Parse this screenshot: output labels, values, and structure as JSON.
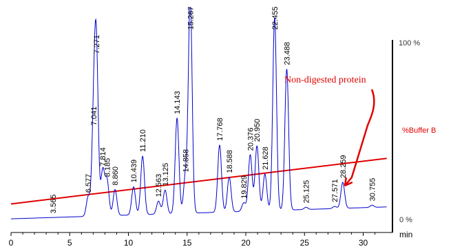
{
  "chart_data": {
    "type": "line",
    "xlabel": "min",
    "xlim": [
      0,
      32
    ],
    "ylim": [
      0,
      100
    ],
    "x_ticks": [
      0,
      5,
      10,
      15,
      20,
      25,
      30
    ],
    "y_axis_labels": {
      "top": "100 %",
      "bottom": "0 %"
    },
    "series": [
      {
        "kind": "chromatogram",
        "color": "#0000cc",
        "peaks": [
          {
            "rt": "3.565",
            "x": 3.565,
            "height": 0
          },
          {
            "rt": "6.577",
            "x": 6.577,
            "height": 9
          },
          {
            "rt": "7.041",
            "x": 7.041,
            "height": 40
          },
          {
            "rt": "7.271",
            "x": 7.271,
            "height": 73
          },
          {
            "rt": "7.814",
            "x": 7.814,
            "height": 21
          },
          {
            "rt": "8.185",
            "x": 8.185,
            "height": 16
          },
          {
            "rt": "8.860",
            "x": 8.86,
            "height": 12
          },
          {
            "rt": "10.439",
            "x": 10.439,
            "height": 13
          },
          {
            "rt": "11.210",
            "x": 11.21,
            "height": 27
          },
          {
            "rt": "12.563",
            "x": 12.563,
            "height": 6
          },
          {
            "rt": "13.125",
            "x": 13.125,
            "height": 11
          },
          {
            "rt": "14.143",
            "x": 14.143,
            "height": 44
          },
          {
            "rt": "14.858",
            "x": 14.858,
            "height": 17
          },
          {
            "rt": "15.267",
            "x": 15.267,
            "height": 100
          },
          {
            "rt": "17.768",
            "x": 17.768,
            "height": 31
          },
          {
            "rt": "18.588",
            "x": 18.588,
            "height": 16
          },
          {
            "rt": "19.829",
            "x": 19.829,
            "height": 4
          },
          {
            "rt": "20.376",
            "x": 20.376,
            "height": 26
          },
          {
            "rt": "20.950",
            "x": 20.95,
            "height": 30
          },
          {
            "rt": "21.628",
            "x": 21.628,
            "height": 17
          },
          {
            "rt": "22.455",
            "x": 22.455,
            "height": 89
          },
          {
            "rt": "23.488",
            "x": 23.488,
            "height": 65
          },
          {
            "rt": "25.125",
            "x": 25.125,
            "height": 1
          },
          {
            "rt": "27.571",
            "x": 27.571,
            "height": 1
          },
          {
            "rt": "28.259",
            "x": 28.259,
            "height": 12
          },
          {
            "rt": "30.755",
            "x": 30.755,
            "height": 1
          }
        ]
      },
      {
        "name": "%Buffer B",
        "kind": "gradient",
        "color": "#e00000",
        "x": [
          0,
          32
        ],
        "y": [
          10,
          35
        ]
      }
    ],
    "annotations": [
      {
        "text": "Non-digested protein",
        "points_to_rt": 28.259,
        "color": "#e00000"
      }
    ]
  }
}
